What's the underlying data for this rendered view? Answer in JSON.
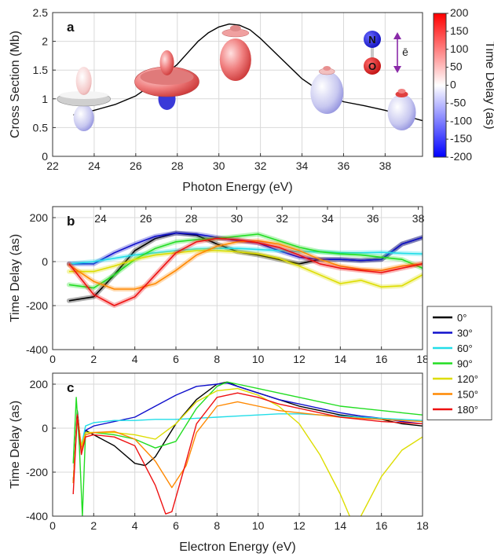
{
  "chart_data": [
    {
      "panel": "a",
      "type": "line",
      "panel_label": "a",
      "xlabel": "Photon Energy (eV)",
      "ylabel": "Cross Section (Mb)",
      "xlim": [
        22,
        39.8
      ],
      "ylim": [
        0,
        2.5
      ],
      "xticks": [
        22,
        24,
        26,
        28,
        30,
        32,
        34,
        36,
        38
      ],
      "yticks": [
        0,
        0.5,
        1,
        1.5,
        2,
        2.5
      ],
      "ytick_labels": [
        "0",
        "0.5",
        "1",
        "1.5",
        "2",
        "2.5"
      ],
      "grid": true,
      "series": [
        {
          "color": "#000000",
          "x": [
            23,
            24,
            25,
            26,
            27,
            28,
            28.5,
            29,
            29.5,
            30,
            30.5,
            31,
            31.5,
            32,
            33,
            34,
            35,
            36,
            37,
            38,
            38.7,
            39.8
          ],
          "values": [
            0.72,
            0.8,
            0.9,
            1.05,
            1.3,
            1.6,
            1.8,
            2.0,
            2.15,
            2.25,
            2.3,
            2.28,
            2.2,
            2.05,
            1.7,
            1.35,
            1.1,
            0.95,
            0.88,
            0.8,
            0.73,
            0.62
          ]
        }
      ],
      "molecule": {
        "atoms": [
          "N",
          "O"
        ],
        "field_label": "ē"
      },
      "colorbar": {
        "label": "Time Delay (as)",
        "range": [
          -200,
          200
        ],
        "ticks": [
          200,
          150,
          100,
          50,
          0,
          -50,
          -100,
          -150,
          -200
        ],
        "colors": [
          "#0000ff",
          "#ffffff",
          "#ff0000"
        ]
      },
      "shape_energies": [
        23.5,
        27.5,
        30.8,
        35.2,
        38.8
      ]
    },
    {
      "panel": "b",
      "type": "line",
      "panel_label": "b",
      "xlabel": "",
      "ylabel": "Time Delay (as)",
      "xlim": [
        0,
        18
      ],
      "ylim": [
        -400,
        250
      ],
      "xticks": [
        0,
        2,
        4,
        6,
        8,
        10,
        12,
        14,
        16,
        18
      ],
      "yticks": [
        -400,
        -200,
        0,
        200
      ],
      "top_axis_ticks": [
        24,
        26,
        28,
        30,
        32,
        34,
        36,
        38
      ],
      "grid": true,
      "series": [
        {
          "name": "0°",
          "color": "#000000",
          "x": [
            0.8,
            2,
            3,
            4,
            5,
            6,
            7,
            8,
            9,
            10,
            11,
            12,
            13,
            14,
            15,
            16,
            17,
            18
          ],
          "values": [
            -178,
            -160,
            -60,
            50,
            105,
            130,
            120,
            80,
            45,
            30,
            10,
            -10,
            10,
            10,
            5,
            10,
            80,
            110
          ]
        },
        {
          "name": "30°",
          "color": "#1010cc",
          "x": [
            0.8,
            2,
            3,
            4,
            5,
            6,
            7,
            8,
            9,
            10,
            11,
            12,
            13,
            14,
            15,
            16,
            17,
            18
          ],
          "values": [
            -10,
            -10,
            40,
            80,
            115,
            130,
            125,
            110,
            95,
            85,
            50,
            20,
            10,
            10,
            5,
            10,
            80,
            110
          ]
        },
        {
          "name": "60°",
          "color": "#22dde8",
          "x": [
            0.8,
            2,
            3,
            4,
            5,
            6,
            7,
            8,
            9,
            10,
            11,
            12,
            13,
            14,
            15,
            16,
            17,
            18
          ],
          "values": [
            -10,
            0,
            15,
            30,
            40,
            50,
            58,
            60,
            60,
            55,
            50,
            45,
            45,
            40,
            40,
            42,
            38,
            35
          ]
        },
        {
          "name": "90°",
          "color": "#22dd22",
          "x": [
            0.8,
            2,
            3,
            4,
            5,
            6,
            7,
            8,
            9,
            10,
            11,
            12,
            13,
            14,
            15,
            16,
            17,
            18
          ],
          "values": [
            -105,
            -120,
            -60,
            10,
            60,
            90,
            100,
            105,
            115,
            125,
            95,
            65,
            45,
            35,
            30,
            20,
            10,
            -30
          ]
        },
        {
          "name": "120°",
          "color": "#dddd00",
          "x": [
            0.8,
            2,
            3,
            4,
            5,
            6,
            7,
            8,
            9,
            10,
            11,
            12,
            13,
            14,
            15,
            16,
            17,
            18
          ],
          "values": [
            -45,
            -45,
            -20,
            10,
            30,
            40,
            50,
            50,
            45,
            35,
            15,
            -20,
            -60,
            -100,
            -85,
            -115,
            -110,
            -60
          ]
        },
        {
          "name": "150°",
          "color": "#ff8800",
          "x": [
            0.8,
            2,
            3,
            4,
            5,
            6,
            7,
            8,
            9,
            10,
            11,
            12,
            13,
            14,
            15,
            16,
            17,
            18
          ],
          "values": [
            -15,
            -90,
            -125,
            -125,
            -100,
            -40,
            30,
            70,
            90,
            95,
            80,
            50,
            10,
            -20,
            -35,
            -40,
            -20,
            -10
          ]
        },
        {
          "name": "180°",
          "color": "#ee1111",
          "x": [
            0.8,
            2,
            3,
            4,
            5,
            6,
            7,
            8,
            9,
            10,
            11,
            12,
            13,
            14,
            15,
            16,
            17,
            18
          ],
          "values": [
            -10,
            -150,
            -200,
            -160,
            -60,
            40,
            90,
            105,
            100,
            85,
            65,
            30,
            -10,
            -30,
            -40,
            -50,
            -30,
            -10
          ]
        }
      ]
    },
    {
      "panel": "c",
      "type": "line",
      "panel_label": "c",
      "xlabel": "Electron Energy (eV)",
      "ylabel": "Time Delay (as)",
      "xlim": [
        0,
        18
      ],
      "ylim": [
        -400,
        250
      ],
      "xticks": [
        0,
        2,
        4,
        6,
        8,
        10,
        12,
        14,
        16,
        18
      ],
      "yticks": [
        -400,
        -200,
        0,
        200
      ],
      "grid": true,
      "legend_position": "right",
      "series": [
        {
          "name": "0°",
          "color": "#000000",
          "x": [
            1,
            1.2,
            1.4,
            1.6,
            2,
            3,
            4,
            4.5,
            5,
            6,
            7,
            8,
            8.5,
            9,
            10,
            11,
            12,
            13,
            14,
            15,
            16,
            17,
            18
          ],
          "values": [
            -250,
            80,
            -100,
            -10,
            -30,
            -80,
            -160,
            -170,
            -130,
            20,
            130,
            200,
            210,
            190,
            160,
            130,
            100,
            80,
            60,
            50,
            40,
            20,
            10
          ]
        },
        {
          "name": "30°",
          "color": "#1010cc",
          "x": [
            1,
            1.2,
            1.4,
            1.6,
            2,
            3,
            4,
            5,
            6,
            7,
            8,
            8.5,
            9,
            10,
            11,
            12,
            13,
            14,
            15,
            16,
            17,
            18
          ],
          "values": [
            -250,
            60,
            -100,
            -10,
            10,
            30,
            50,
            100,
            150,
            190,
            200,
            205,
            190,
            160,
            130,
            110,
            90,
            70,
            55,
            45,
            30,
            20
          ]
        },
        {
          "name": "60°",
          "color": "#22dde8",
          "x": [
            1,
            1.2,
            1.4,
            1.6,
            2,
            3,
            4,
            5,
            6,
            7,
            8,
            9,
            10,
            11,
            12,
            13,
            14,
            15,
            16,
            17,
            18
          ],
          "values": [
            -250,
            40,
            -80,
            10,
            25,
            35,
            35,
            40,
            40,
            45,
            50,
            55,
            60,
            65,
            65,
            60,
            55,
            50,
            45,
            40,
            35
          ]
        },
        {
          "name": "90°",
          "color": "#22dd22",
          "x": [
            1,
            1.15,
            1.3,
            1.45,
            1.6,
            2,
            3,
            4,
            5,
            6,
            7,
            8,
            8.5,
            9,
            10,
            11,
            12,
            13,
            14,
            15,
            16,
            17,
            18
          ],
          "values": [
            -160,
            140,
            -80,
            -400,
            -20,
            -20,
            -30,
            -50,
            -90,
            -60,
            90,
            190,
            210,
            200,
            180,
            160,
            140,
            120,
            100,
            90,
            80,
            70,
            60
          ]
        },
        {
          "name": "120°",
          "color": "#dddd00",
          "x": [
            1,
            1.2,
            1.4,
            1.6,
            2,
            3,
            4,
            5,
            6,
            7,
            8,
            9,
            10,
            11,
            12,
            13,
            14,
            14.5,
            15,
            16,
            17,
            18
          ],
          "values": [
            -250,
            60,
            -80,
            -20,
            -20,
            -20,
            -30,
            -50,
            20,
            120,
            170,
            180,
            150,
            100,
            20,
            -120,
            -300,
            -410,
            -400,
            -220,
            -100,
            -40
          ]
        },
        {
          "name": "150°",
          "color": "#ff8800",
          "x": [
            1,
            1.2,
            1.4,
            1.6,
            2,
            3,
            4,
            5,
            5.8,
            6.5,
            7,
            8,
            9,
            10,
            11,
            12,
            13,
            14,
            15,
            16,
            17,
            18
          ],
          "values": [
            -250,
            60,
            -100,
            -30,
            -20,
            -15,
            -50,
            -150,
            -270,
            -170,
            -20,
            100,
            120,
            100,
            80,
            70,
            60,
            50,
            45,
            40,
            35,
            30
          ]
        },
        {
          "name": "180°",
          "color": "#ee1111",
          "x": [
            1,
            1.2,
            1.4,
            1.6,
            2,
            3,
            4,
            5,
            5.5,
            5.8,
            6.5,
            7,
            8,
            9,
            10,
            11,
            12,
            13,
            14,
            15,
            16,
            17,
            18
          ],
          "values": [
            -300,
            60,
            -120,
            -40,
            -30,
            -40,
            -80,
            -260,
            -390,
            -380,
            -150,
            20,
            140,
            160,
            140,
            110,
            90,
            70,
            50,
            40,
            30,
            25,
            20
          ]
        }
      ]
    }
  ]
}
